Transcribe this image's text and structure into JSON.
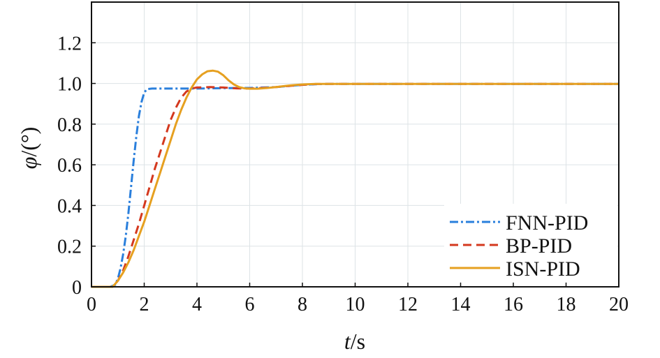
{
  "chart_data": {
    "type": "line",
    "xlabel": {
      "italic": "t",
      "rest": "/s"
    },
    "ylabel": {
      "italic": "φ",
      "rest": "/(°)"
    },
    "xlim": [
      0,
      20
    ],
    "ylim": [
      0,
      1.4
    ],
    "xticks": [
      "0",
      "2",
      "4",
      "6",
      "8",
      "10",
      "12",
      "14",
      "16",
      "18",
      "20"
    ],
    "xtick_values": [
      0,
      2,
      4,
      6,
      8,
      10,
      12,
      14,
      16,
      18,
      20
    ],
    "yticks": [
      "0",
      "0.2",
      "0.4",
      "0.6",
      "0.8",
      "1.0",
      "1.2"
    ],
    "ytick_values": [
      0,
      0.2,
      0.4,
      0.6,
      0.8,
      1.0,
      1.2
    ],
    "grid": true,
    "legend_position": "bottom-right",
    "series": [
      {
        "name": "FNN-PID",
        "color": "#2a7fdc",
        "dash": "12,4,3,4",
        "x": [
          0,
          0.7,
          0.9,
          1.0,
          1.1,
          1.2,
          1.3,
          1.4,
          1.5,
          1.6,
          1.7,
          1.8,
          1.9,
          2.0,
          2.1,
          2.3,
          3.0,
          4.0,
          5.0,
          6.0,
          7.0,
          7.5,
          8.0,
          8.5,
          9.0,
          12.0,
          16.0,
          20.0
        ],
        "y": [
          0,
          0,
          0.01,
          0.04,
          0.09,
          0.16,
          0.25,
          0.36,
          0.49,
          0.62,
          0.74,
          0.84,
          0.91,
          0.955,
          0.972,
          0.975,
          0.975,
          0.975,
          0.977,
          0.978,
          0.982,
          0.988,
          0.993,
          0.996,
          0.998,
          0.998,
          0.998,
          0.998
        ]
      },
      {
        "name": "BP-PID",
        "color": "#d4381e",
        "dash": "12,7",
        "x": [
          0,
          0.8,
          1.0,
          1.2,
          1.4,
          1.6,
          1.8,
          2.0,
          2.2,
          2.4,
          2.6,
          2.8,
          3.0,
          3.2,
          3.4,
          3.6,
          3.8,
          4.0,
          4.5,
          5.0,
          5.5,
          6.0,
          6.5,
          7.0,
          7.5,
          8.0,
          8.5,
          9.0,
          12.0,
          16.0,
          20.0
        ],
        "y": [
          0,
          0,
          0.03,
          0.08,
          0.15,
          0.23,
          0.31,
          0.4,
          0.49,
          0.58,
          0.66,
          0.74,
          0.82,
          0.88,
          0.93,
          0.96,
          0.975,
          0.98,
          0.982,
          0.98,
          0.976,
          0.975,
          0.978,
          0.982,
          0.988,
          0.993,
          0.997,
          0.998,
          0.998,
          0.998,
          0.998
        ]
      },
      {
        "name": "ISN-PID",
        "color": "#e6a020",
        "dash": "",
        "x": [
          0,
          0.8,
          1.0,
          1.2,
          1.4,
          1.6,
          1.8,
          2.0,
          2.2,
          2.4,
          2.6,
          2.8,
          3.0,
          3.2,
          3.4,
          3.6,
          3.8,
          4.0,
          4.2,
          4.4,
          4.6,
          4.8,
          5.0,
          5.2,
          5.4,
          5.6,
          5.8,
          6.0,
          6.3,
          6.6,
          7.0,
          7.5,
          8.0,
          8.5,
          9.0,
          12.0,
          16.0,
          20.0
        ],
        "y": [
          0,
          0,
          0.03,
          0.07,
          0.12,
          0.18,
          0.25,
          0.32,
          0.4,
          0.48,
          0.56,
          0.64,
          0.72,
          0.8,
          0.87,
          0.93,
          0.98,
          1.02,
          1.045,
          1.06,
          1.063,
          1.058,
          1.04,
          1.015,
          0.995,
          0.982,
          0.976,
          0.974,
          0.974,
          0.977,
          0.982,
          0.99,
          0.995,
          0.998,
          0.998,
          0.998,
          0.998,
          0.998
        ]
      }
    ]
  }
}
